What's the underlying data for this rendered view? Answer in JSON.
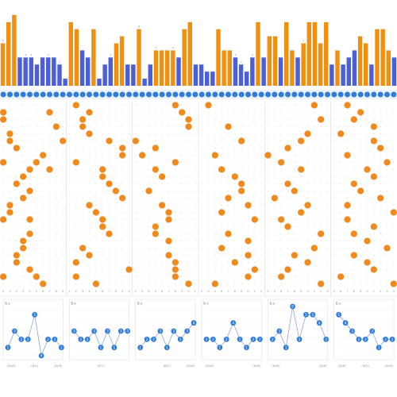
{
  "chart_data": {
    "type": "bar",
    "title": "",
    "xlabel": "",
    "ylabel": "",
    "colors": {
      "orange": "#F0900E",
      "blue": "#4A5FD8",
      "ball_orange": "#F08A1C",
      "ball_blue": "#2F7CDA",
      "grid": "#d9d9d9",
      "text": "#999999"
    },
    "top_bars": {
      "ylim": [
        0,
        11
      ],
      "values": [
        6,
        9,
        10,
        4,
        4,
        4,
        3,
        4,
        4,
        4,
        3,
        1,
        9,
        8,
        5,
        4,
        8,
        1,
        3,
        4,
        6,
        7,
        3,
        3,
        8,
        1,
        3,
        5,
        5,
        5,
        5,
        4,
        8,
        9,
        3,
        3,
        2,
        2,
        8,
        5,
        5,
        4,
        3,
        2,
        4,
        9,
        4,
        7,
        7,
        4,
        9,
        5,
        4,
        6,
        9,
        9,
        6,
        9,
        3,
        5,
        3,
        4,
        5,
        7,
        6,
        3,
        8,
        8,
        5,
        4
      ],
      "colors": [
        "o",
        "o",
        "o",
        "b",
        "b",
        "b",
        "b",
        "b",
        "b",
        "b",
        "b",
        "b",
        "o",
        "o",
        "b",
        "b",
        "o",
        "b",
        "b",
        "b",
        "o",
        "o",
        "b",
        "b",
        "o",
        "b",
        "b",
        "o",
        "o",
        "o",
        "o",
        "b",
        "o",
        "o",
        "b",
        "b",
        "b",
        "b",
        "o",
        "o",
        "o",
        "b",
        "b",
        "b",
        "b",
        "o",
        "b",
        "o",
        "o",
        "b",
        "o",
        "o",
        "b",
        "o",
        "o",
        "o",
        "o",
        "o",
        "b",
        "o",
        "b",
        "b",
        "b",
        "o",
        "o",
        "b",
        "o",
        "o",
        "o",
        "b"
      ],
      "labels": [
        "6",
        "",
        "",
        "",
        "4",
        "4",
        "",
        "",
        "4",
        "",
        "3",
        "",
        "",
        "",
        "",
        "",
        "",
        "",
        "",
        "4",
        "",
        "",
        "",
        "",
        "8",
        "",
        "",
        "5",
        "",
        "",
        "4",
        "",
        "",
        "",
        "",
        "",
        "",
        "",
        "",
        "",
        "",
        "4",
        "4",
        "",
        "4",
        "",
        "",
        "",
        "",
        "",
        "",
        "",
        "",
        "5",
        "",
        "",
        "",
        "",
        "",
        "",
        "",
        "",
        "",
        "",
        "",
        "",
        "",
        "",
        "",
        ""
      ]
    },
    "ball_grid": {
      "panels": 6,
      "columns_per_panel": 10,
      "rows": 26,
      "orange_positions": [
        [
          [
            1,
            0
          ],
          [
            2,
            0
          ],
          [
            4,
            1
          ],
          [
            5,
            1
          ],
          [
            6,
            2
          ],
          [
            8,
            0
          ],
          [
            8,
            5
          ],
          [
            9,
            4
          ],
          [
            10,
            3
          ],
          [
            11,
            2
          ],
          [
            12,
            4
          ],
          [
            13,
            3
          ],
          [
            14,
            1
          ],
          [
            15,
            1
          ],
          [
            16,
            0
          ],
          [
            16,
            4
          ],
          [
            18,
            4
          ],
          [
            19,
            3
          ],
          [
            20,
            3
          ],
          [
            21,
            2
          ],
          [
            22,
            2
          ],
          [
            23,
            4
          ],
          [
            24,
            0
          ],
          [
            24,
            5
          ],
          [
            25,
            6
          ],
          [
            1,
            7
          ],
          [
            3,
            8
          ],
          [
            5,
            9
          ],
          [
            7,
            6
          ],
          [
            9,
            7
          ]
        ],
        [
          [
            0,
            1
          ],
          [
            1,
            3
          ],
          [
            2,
            2
          ],
          [
            3,
            2
          ],
          [
            4,
            3
          ],
          [
            5,
            6
          ],
          [
            6,
            8
          ],
          [
            7,
            8
          ],
          [
            8,
            1
          ],
          [
            9,
            5
          ],
          [
            10,
            5
          ],
          [
            11,
            6
          ],
          [
            12,
            7
          ],
          [
            13,
            8
          ],
          [
            14,
            3
          ],
          [
            15,
            4
          ],
          [
            16,
            5
          ],
          [
            17,
            5
          ],
          [
            18,
            6
          ],
          [
            20,
            2
          ],
          [
            21,
            3
          ],
          [
            22,
            1
          ],
          [
            23,
            9
          ],
          [
            24,
            1
          ],
          [
            25,
            4
          ]
        ],
        [
          [
            0,
            6
          ],
          [
            1,
            7
          ],
          [
            2,
            8
          ],
          [
            3,
            8
          ],
          [
            5,
            0
          ],
          [
            6,
            3
          ],
          [
            7,
            1
          ],
          [
            8,
            6
          ],
          [
            9,
            3
          ],
          [
            10,
            4
          ],
          [
            12,
            2
          ],
          [
            14,
            4
          ],
          [
            15,
            5
          ],
          [
            16,
            5
          ],
          [
            17,
            3
          ],
          [
            18,
            3
          ],
          [
            19,
            5
          ],
          [
            21,
            5
          ],
          [
            22,
            6
          ],
          [
            23,
            6
          ],
          [
            24,
            6
          ],
          [
            25,
            8
          ]
        ],
        [
          [
            0,
            1
          ],
          [
            3,
            4
          ],
          [
            5,
            6
          ],
          [
            7,
            2
          ],
          [
            9,
            3
          ],
          [
            10,
            5
          ],
          [
            11,
            6
          ],
          [
            12,
            6
          ],
          [
            13,
            4
          ],
          [
            14,
            7
          ],
          [
            15,
            3
          ],
          [
            16,
            8
          ],
          [
            18,
            4
          ],
          [
            19,
            7
          ],
          [
            20,
            3
          ],
          [
            21,
            7
          ],
          [
            22,
            5
          ],
          [
            23,
            8
          ],
          [
            24,
            7
          ],
          [
            25,
            2
          ]
        ],
        [
          [
            0,
            7
          ],
          [
            2,
            8
          ],
          [
            4,
            6
          ],
          [
            5,
            5
          ],
          [
            6,
            3
          ],
          [
            7,
            0
          ],
          [
            8,
            2
          ],
          [
            9,
            5
          ],
          [
            11,
            3
          ],
          [
            12,
            4
          ],
          [
            13,
            1
          ],
          [
            14,
            6
          ],
          [
            15,
            5
          ],
          [
            16,
            2
          ],
          [
            17,
            3
          ],
          [
            18,
            8
          ],
          [
            20,
            7
          ],
          [
            21,
            4
          ],
          [
            22,
            6
          ],
          [
            23,
            3
          ],
          [
            24,
            2
          ],
          [
            25,
            8
          ]
        ],
        [
          [
            0,
            2
          ],
          [
            1,
            4
          ],
          [
            2,
            3
          ],
          [
            3,
            6
          ],
          [
            4,
            1
          ],
          [
            5,
            6
          ],
          [
            6,
            7
          ],
          [
            7,
            2
          ],
          [
            8,
            8
          ],
          [
            9,
            5
          ],
          [
            10,
            6
          ],
          [
            11,
            3
          ],
          [
            12,
            4
          ],
          [
            13,
            7
          ],
          [
            14,
            2
          ],
          [
            15,
            9
          ],
          [
            16,
            2
          ],
          [
            17,
            6
          ],
          [
            18,
            3
          ],
          [
            19,
            5
          ],
          [
            20,
            8
          ],
          [
            21,
            3
          ],
          [
            22,
            5
          ],
          [
            23,
            6
          ],
          [
            24,
            1
          ],
          [
            25,
            9
          ]
        ]
      ]
    },
    "mini_charts": {
      "ylim": [
        0,
        6
      ],
      "top_label": "6+",
      "series": [
        {
          "values": [
            1,
            3,
            2,
            2,
            5,
            0,
            2,
            2,
            1
          ],
          "labels": [
            "1",
            "3",
            "2",
            "2",
            "5",
            "0",
            "2",
            "2",
            "1"
          ]
        },
        {
          "values": [
            3,
            2,
            2,
            3,
            1,
            3,
            1,
            3,
            3
          ],
          "labels": [
            "3",
            "2",
            "2",
            "3",
            "1",
            "3",
            "1",
            "3",
            "3"
          ]
        },
        {
          "values": [
            1,
            2,
            2,
            3,
            1,
            3,
            2,
            3,
            4
          ],
          "labels": [
            "1",
            "2",
            "2",
            "3",
            "1",
            "3",
            "2",
            "3",
            "4"
          ]
        },
        {
          "values": [
            2,
            2,
            1,
            2,
            4,
            2,
            1,
            2,
            2
          ],
          "labels": [
            "2",
            "2",
            "1",
            "2",
            "4",
            "2",
            "1",
            "2",
            "2"
          ]
        },
        {
          "values": [
            2,
            3,
            1,
            6,
            2,
            5,
            5,
            4,
            2
          ],
          "labels": [
            "2",
            "3",
            "1",
            "6",
            "2",
            "5",
            "5",
            "4",
            "2"
          ]
        },
        {
          "values": [
            5,
            4,
            3,
            2,
            2,
            3,
            1,
            2,
            2
          ],
          "labels": [
            "5",
            "4",
            "3",
            "2",
            "2",
            "3",
            "1",
            "2",
            "2"
          ]
        }
      ],
      "footer_labels": [
        [
          "(W/B)",
          "(B/L)",
          "(W/B)"
        ],
        [
          "",
          "(B/C)",
          ""
        ],
        [
          "",
          "(B/C)",
          "(W/B)"
        ],
        [
          "(W/B)",
          "",
          "(W/B)"
        ],
        [
          "(W/B)",
          "",
          "(W/B)"
        ],
        [
          "(W/B)",
          "(W/L)",
          "(W/B)"
        ]
      ]
    }
  }
}
